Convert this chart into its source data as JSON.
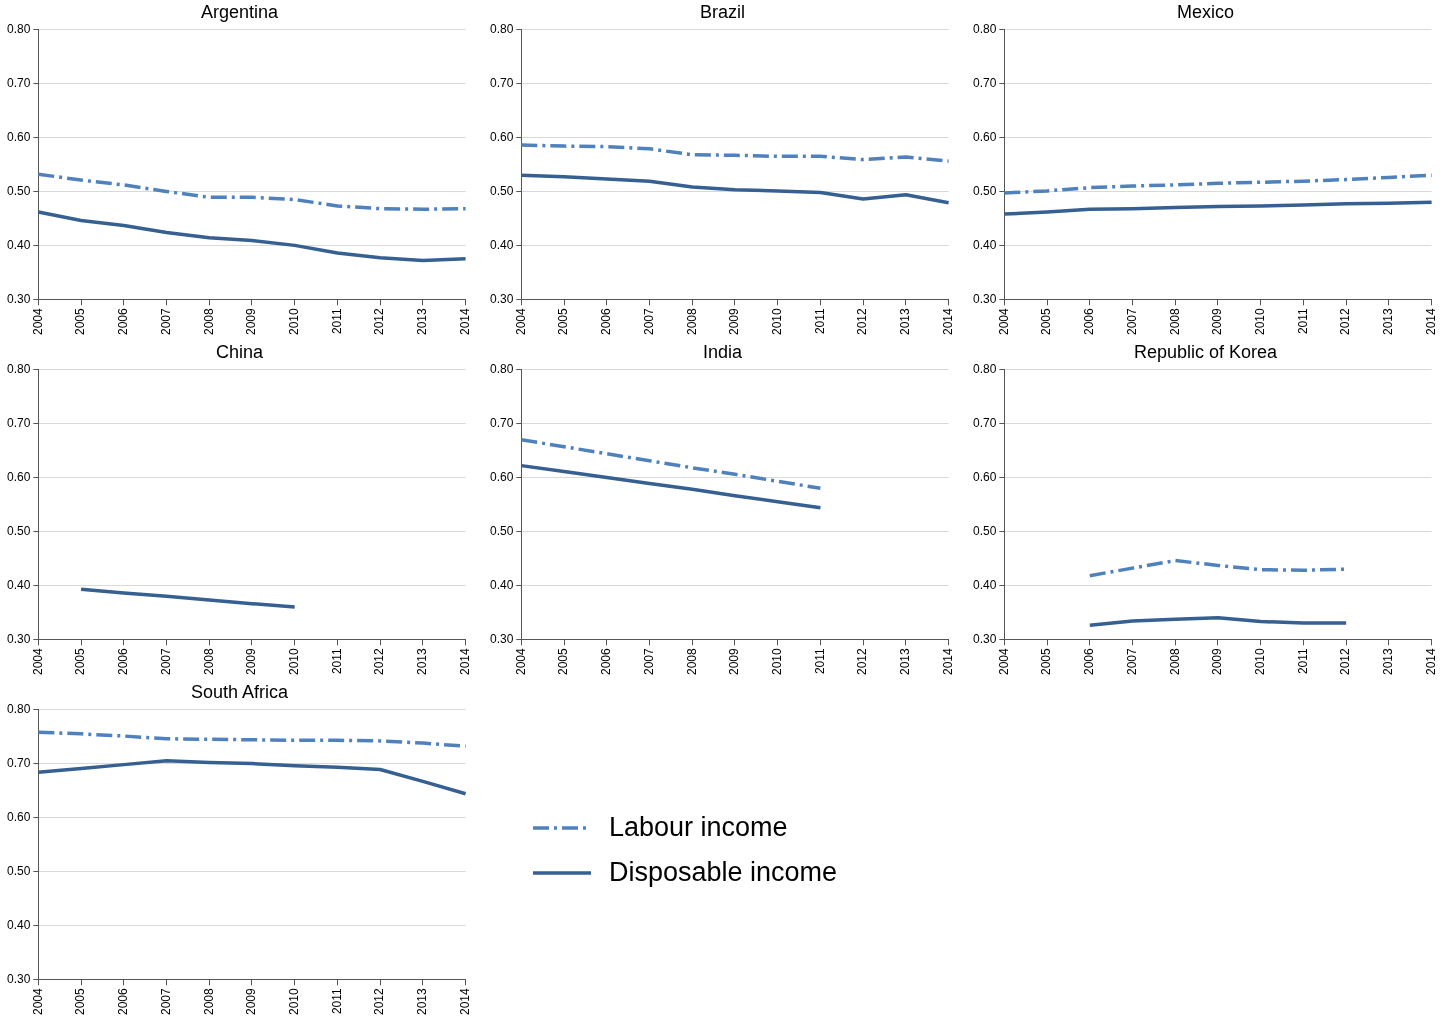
{
  "chart_data": [
    {
      "type": "line",
      "title": "Argentina",
      "categories": [
        "2004",
        "2005",
        "2006",
        "2007",
        "2008",
        "2009",
        "2010",
        "2011",
        "2012",
        "2013",
        "2014"
      ],
      "ylim": [
        0.3,
        0.8
      ],
      "yticks": [
        {
          "value": 0.3,
          "label": "0.30"
        },
        {
          "value": 0.4,
          "label": "0.40"
        },
        {
          "value": 0.5,
          "label": "0.50"
        },
        {
          "value": 0.6,
          "label": "0.60"
        },
        {
          "value": 0.7,
          "label": "0.70"
        },
        {
          "value": 0.8,
          "label": "0.80"
        }
      ],
      "grid": "y",
      "marker": "none",
      "series": [
        {
          "color": "#4f81bd",
          "line_style": "dashed",
          "values": [
            0.532,
            0.521,
            0.512,
            0.5,
            0.489,
            0.489,
            0.485,
            0.473,
            0.468,
            0.467,
            0.468
          ]
        },
        {
          "color": "#376092",
          "line_style": "solid",
          "values": [
            0.462,
            0.446,
            0.437,
            0.424,
            0.414,
            0.409,
            0.4,
            0.386,
            0.377,
            0.372,
            0.375
          ]
        }
      ]
    },
    {
      "type": "line",
      "title": "Brazil",
      "categories": [
        "2004",
        "2005",
        "2006",
        "2007",
        "2008",
        "2009",
        "2010",
        "2011",
        "2012",
        "2013",
        "2014"
      ],
      "ylim": [
        0.3,
        0.8
      ],
      "yticks": [
        {
          "value": 0.3,
          "label": "0.30"
        },
        {
          "value": 0.4,
          "label": "0.40"
        },
        {
          "value": 0.5,
          "label": "0.50"
        },
        {
          "value": 0.6,
          "label": "0.60"
        },
        {
          "value": 0.7,
          "label": "0.70"
        },
        {
          "value": 0.8,
          "label": "0.80"
        }
      ],
      "grid": "y",
      "marker": "none",
      "series": [
        {
          "color": "#4f81bd",
          "line_style": "dashed",
          "values": [
            0.586,
            0.584,
            0.583,
            0.579,
            0.568,
            0.567,
            0.565,
            0.565,
            0.559,
            0.564,
            0.556
          ]
        },
        {
          "color": "#376092",
          "line_style": "solid",
          "values": [
            0.53,
            0.527,
            0.523,
            0.519,
            0.508,
            0.503,
            0.501,
            0.498,
            0.486,
            0.494,
            0.479
          ]
        }
      ]
    },
    {
      "type": "line",
      "title": "Mexico",
      "categories": [
        "2004",
        "2005",
        "2006",
        "2007",
        "2008",
        "2009",
        "2010",
        "2011",
        "2012",
        "2013",
        "2014"
      ],
      "ylim": [
        0.3,
        0.8
      ],
      "yticks": [
        {
          "value": 0.3,
          "label": "0.30"
        },
        {
          "value": 0.4,
          "label": "0.40"
        },
        {
          "value": 0.5,
          "label": "0.50"
        },
        {
          "value": 0.6,
          "label": "0.60"
        },
        {
          "value": 0.7,
          "label": "0.70"
        },
        {
          "value": 0.8,
          "label": "0.80"
        }
      ],
      "grid": "y",
      "marker": "none",
      "series": [
        {
          "color": "#4f81bd",
          "line_style": "dashed",
          "values": [
            0.497,
            0.501,
            0.507,
            0.51,
            0.512,
            0.515,
            0.517,
            0.519,
            0.522,
            0.526,
            0.53
          ]
        },
        {
          "color": "#376092",
          "line_style": "solid",
          "values": [
            0.458,
            0.462,
            0.467,
            0.468,
            0.47,
            0.472,
            0.473,
            0.475,
            0.477,
            0.478,
            0.48
          ]
        }
      ]
    },
    {
      "type": "line",
      "title": "China",
      "categories": [
        "2004",
        "2005",
        "2006",
        "2007",
        "2008",
        "2009",
        "2010",
        "2011",
        "2012",
        "2013",
        "2014"
      ],
      "ylim": [
        0.3,
        0.8
      ],
      "yticks": [
        {
          "value": 0.3,
          "label": "0.30"
        },
        {
          "value": 0.4,
          "label": "0.40"
        },
        {
          "value": 0.5,
          "label": "0.50"
        },
        {
          "value": 0.6,
          "label": "0.60"
        },
        {
          "value": 0.7,
          "label": "0.70"
        },
        {
          "value": 0.8,
          "label": "0.80"
        }
      ],
      "grid": "y",
      "marker": "none",
      "series": [
        {
          "color": "#376092",
          "line_style": "solid",
          "values": [
            null,
            0.393,
            0.386,
            0.38,
            0.373,
            0.366,
            0.36,
            null,
            null,
            null,
            null
          ]
        }
      ]
    },
    {
      "type": "line",
      "title": "India",
      "categories": [
        "2004",
        "2005",
        "2006",
        "2007",
        "2008",
        "2009",
        "2010",
        "2011",
        "2012",
        "2013",
        "2014"
      ],
      "ylim": [
        0.3,
        0.8
      ],
      "yticks": [
        {
          "value": 0.3,
          "label": "0.30"
        },
        {
          "value": 0.4,
          "label": "0.40"
        },
        {
          "value": 0.5,
          "label": "0.50"
        },
        {
          "value": 0.6,
          "label": "0.60"
        },
        {
          "value": 0.7,
          "label": "0.70"
        },
        {
          "value": 0.8,
          "label": "0.80"
        }
      ],
      "grid": "y",
      "marker": "none",
      "series": [
        {
          "color": "#4f81bd",
          "line_style": "dashed",
          "values": [
            0.67,
            0.657,
            0.644,
            0.631,
            0.618,
            0.606,
            0.593,
            0.58,
            null,
            null,
            null
          ]
        },
        {
          "color": "#376092",
          "line_style": "solid",
          "values": [
            0.622,
            0.611,
            0.6,
            0.589,
            0.578,
            0.566,
            0.555,
            0.544,
            null,
            null,
            null
          ]
        }
      ]
    },
    {
      "type": "line",
      "title": "Republic of Korea",
      "categories": [
        "2004",
        "2005",
        "2006",
        "2007",
        "2008",
        "2009",
        "2010",
        "2011",
        "2012",
        "2013",
        "2014"
      ],
      "ylim": [
        0.3,
        0.8
      ],
      "yticks": [
        {
          "value": 0.3,
          "label": "0.30"
        },
        {
          "value": 0.4,
          "label": "0.40"
        },
        {
          "value": 0.5,
          "label": "0.50"
        },
        {
          "value": 0.6,
          "label": "0.60"
        },
        {
          "value": 0.7,
          "label": "0.70"
        },
        {
          "value": 0.8,
          "label": "0.80"
        }
      ],
      "grid": "y",
      "marker": "none",
      "series": [
        {
          "color": "#4f81bd",
          "line_style": "dashed",
          "values": [
            null,
            null,
            0.418,
            0.432,
            0.446,
            0.437,
            0.429,
            0.428,
            0.43,
            null,
            null
          ]
        },
        {
          "color": "#376092",
          "line_style": "solid",
          "values": [
            null,
            null,
            0.326,
            0.334,
            0.337,
            0.34,
            0.333,
            0.33,
            0.33,
            null,
            null
          ]
        }
      ]
    },
    {
      "type": "line",
      "title": "South Africa",
      "categories": [
        "2004",
        "2005",
        "2006",
        "2007",
        "2008",
        "2009",
        "2010",
        "2011",
        "2012",
        "2013",
        "2014"
      ],
      "ylim": [
        0.3,
        0.8
      ],
      "yticks": [
        {
          "value": 0.3,
          "label": "0.30"
        },
        {
          "value": 0.4,
          "label": "0.40"
        },
        {
          "value": 0.5,
          "label": "0.50"
        },
        {
          "value": 0.6,
          "label": "0.60"
        },
        {
          "value": 0.7,
          "label": "0.70"
        },
        {
          "value": 0.8,
          "label": "0.80"
        }
      ],
      "grid": "y",
      "marker": "none",
      "legend": "right",
      "series": [
        {
          "name": "Labour income",
          "color": "#4f81bd",
          "line_style": "dashed",
          "values": [
            0.758,
            0.755,
            0.751,
            0.746,
            0.745,
            0.744,
            0.743,
            0.743,
            0.742,
            0.738,
            0.732
          ]
        },
        {
          "name": "Disposable income",
          "color": "#376092",
          "line_style": "solid",
          "values": [
            0.684,
            0.691,
            0.698,
            0.705,
            0.702,
            0.7,
            0.696,
            0.693,
            0.689,
            0.667,
            0.644
          ]
        }
      ]
    }
  ]
}
